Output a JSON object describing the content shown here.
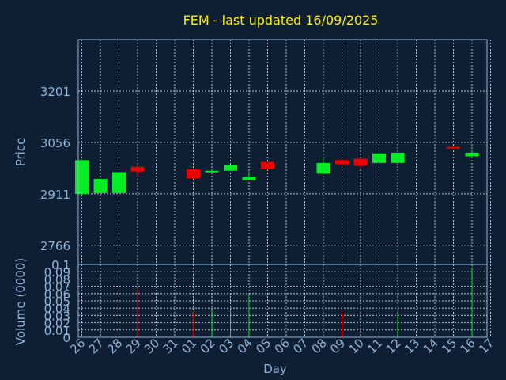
{
  "chart_data": {
    "type": "candlestick",
    "title": "FEM - last updated 16/09/2025",
    "x_label": "Day",
    "x_ticks": [
      "26",
      "27",
      "28",
      "29",
      "30",
      "31",
      "01",
      "02",
      "03",
      "04",
      "05",
      "06",
      "07",
      "08",
      "09",
      "10",
      "11",
      "12",
      "13",
      "14",
      "15",
      "16",
      "17"
    ],
    "price_panel": {
      "y_label": "Price",
      "y_ticks": [
        2766,
        2911,
        3056,
        3201
      ],
      "ylim": [
        2712,
        3346
      ],
      "grid": true,
      "candles": [
        {
          "day": "26",
          "open": 2911,
          "high": 3008,
          "low": 2911,
          "close": 3006,
          "direction": "up"
        },
        {
          "day": "27",
          "open": 2913,
          "high": 2953,
          "low": 2913,
          "close": 2953,
          "direction": "up"
        },
        {
          "day": "28",
          "open": 2913,
          "high": 2972,
          "low": 2913,
          "close": 2972,
          "direction": "up"
        },
        {
          "day": "29",
          "open": 2987,
          "high": 2995,
          "low": 2958,
          "close": 2974,
          "direction": "down"
        },
        {
          "day": "01",
          "open": 2980,
          "high": 2980,
          "low": 2952,
          "close": 2955,
          "direction": "down"
        },
        {
          "day": "02",
          "open": 2972,
          "high": 2978,
          "low": 2972,
          "close": 2976,
          "direction": "up"
        },
        {
          "day": "03",
          "open": 2976,
          "high": 2993,
          "low": 2976,
          "close": 2993,
          "direction": "up"
        },
        {
          "day": "04",
          "open": 2949,
          "high": 2974,
          "low": 2949,
          "close": 2958,
          "direction": "up"
        },
        {
          "day": "05",
          "open": 3001,
          "high": 3001,
          "low": 2978,
          "close": 2981,
          "direction": "down"
        },
        {
          "day": "08",
          "open": 2968,
          "high": 3016,
          "low": 2968,
          "close": 2998,
          "direction": "up"
        },
        {
          "day": "09",
          "open": 3006,
          "high": 3006,
          "low": 2992,
          "close": 2995,
          "direction": "down"
        },
        {
          "day": "10",
          "open": 3010,
          "high": 3010,
          "low": 2980,
          "close": 2990,
          "direction": "down"
        },
        {
          "day": "11",
          "open": 2998,
          "high": 3025,
          "low": 2998,
          "close": 3025,
          "direction": "up"
        },
        {
          "day": "12",
          "open": 2998,
          "high": 3027,
          "low": 2998,
          "close": 3027,
          "direction": "up"
        },
        {
          "day": "15",
          "open": 3043,
          "high": 3044,
          "low": 3038,
          "close": 3039,
          "direction": "down"
        },
        {
          "day": "16",
          "open": 3017,
          "high": 3035,
          "low": 3017,
          "close": 3027,
          "direction": "up"
        }
      ]
    },
    "volume_panel": {
      "y_label": "Volume (0000)",
      "y_ticks": [
        0,
        0.01,
        0.02,
        0.03,
        0.04,
        0.05,
        0.06,
        0.07,
        0.08,
        0.09,
        0.1
      ],
      "ylim": [
        0,
        0.1
      ],
      "grid": true,
      "bars": [
        {
          "day": "29",
          "value": 0.067,
          "direction": "down"
        },
        {
          "day": "01",
          "value": 0.036,
          "direction": "down"
        },
        {
          "day": "02",
          "value": 0.037,
          "direction": "up"
        },
        {
          "day": "03",
          "value": 0.037,
          "direction": "up"
        },
        {
          "day": "04",
          "value": 0.058,
          "direction": "up"
        },
        {
          "day": "09",
          "value": 0.035,
          "direction": "down"
        },
        {
          "day": "11",
          "value": 0.031,
          "direction": "up"
        },
        {
          "day": "12",
          "value": 0.031,
          "direction": "up"
        },
        {
          "day": "16",
          "value": 0.096,
          "direction": "up"
        }
      ]
    },
    "colors": {
      "background": "#0f1f33",
      "plot_background": "#0f1f33",
      "axis": "#8fb4d9",
      "text": "#8fb4d9",
      "title": "#ffee00",
      "grid": "#d9e6f2",
      "up": "#00ee22",
      "down": "#ee0000"
    }
  }
}
